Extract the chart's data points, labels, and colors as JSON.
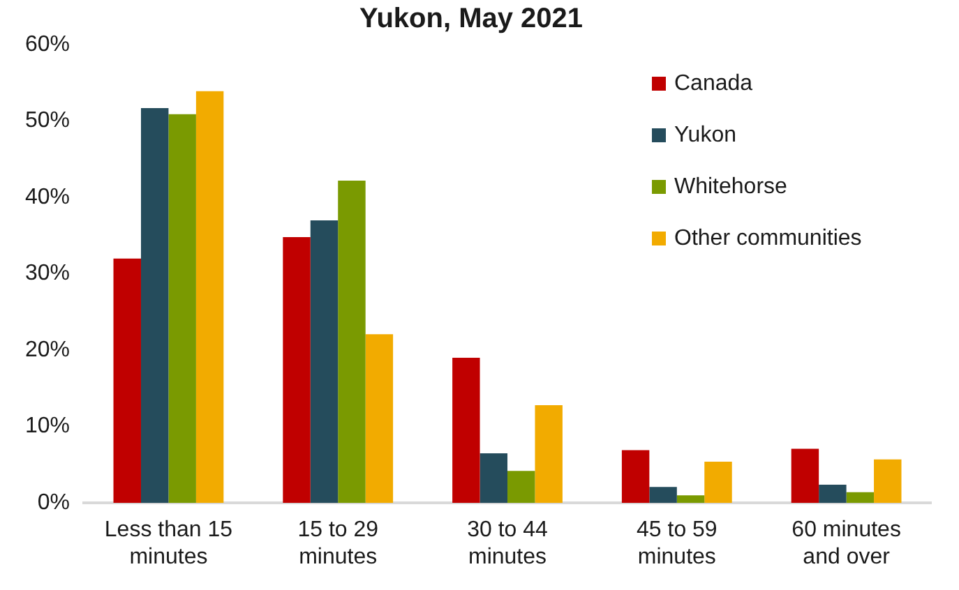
{
  "chart_data": {
    "type": "bar",
    "title": "Yukon, May 2021",
    "categories": [
      "Less than 15 minutes",
      "15 to 29 minutes",
      "30 to 44 minutes",
      "45 to 59 minutes",
      "60 minutes and over"
    ],
    "series": [
      {
        "name": "Canada",
        "color": "#c00000",
        "values": [
          32.0,
          34.8,
          19.0,
          6.9,
          7.1
        ]
      },
      {
        "name": "Yukon",
        "color": "#254c5c",
        "values": [
          51.7,
          37.0,
          6.5,
          2.1,
          2.4
        ]
      },
      {
        "name": "Whitehorse",
        "color": "#7a9a01",
        "values": [
          50.9,
          42.2,
          4.2,
          1.0,
          1.4
        ]
      },
      {
        "name": "Other communities",
        "color": "#f2ab00",
        "values": [
          53.9,
          22.1,
          12.8,
          5.4,
          5.7
        ]
      }
    ],
    "ylim": [
      0,
      60
    ],
    "yticks": [
      {
        "value": 0,
        "label": "0%"
      },
      {
        "value": 10,
        "label": "10%"
      },
      {
        "value": 20,
        "label": "20%"
      },
      {
        "value": 30,
        "label": "30%"
      },
      {
        "value": 40,
        "label": "40%"
      },
      {
        "value": 50,
        "label": "50%"
      },
      {
        "value": 60,
        "label": "60%"
      }
    ],
    "grid": false,
    "legend": "top right"
  }
}
